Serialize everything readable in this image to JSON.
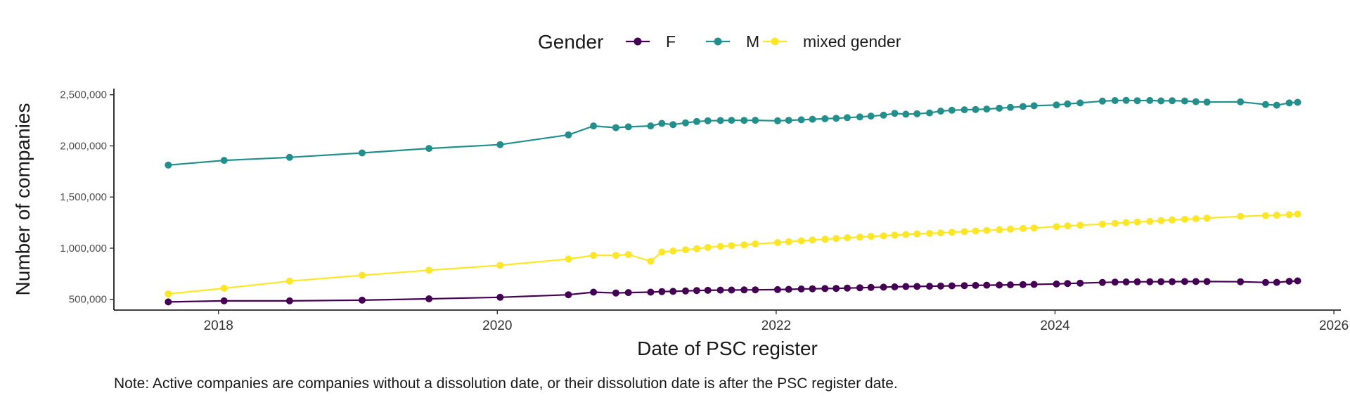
{
  "chart_data": {
    "type": "line",
    "xlabel": "Date of PSC register",
    "ylabel": "Number of companies",
    "xlim": [
      2017.25,
      2026.05
    ],
    "ylim": [
      395000,
      2560000
    ],
    "x_ticks": [
      2018,
      2020,
      2022,
      2024,
      2026
    ],
    "y_ticks": [
      500000,
      1000000,
      1500000,
      2000000,
      2500000
    ],
    "y_tick_labels": [
      "500,000",
      "1,000,000",
      "1,500,000",
      "2,000,000",
      "2,500,000"
    ],
    "grid": false,
    "legend": {
      "title": "Gender",
      "placement": "top",
      "entries": [
        "F",
        "M",
        "mixed gender"
      ]
    },
    "note": "Note: Active companies are companies without a dissolution date, or their dissolution date is after the PSC register date.",
    "x": [
      2017.64,
      2018.04,
      2018.51,
      2019.03,
      2019.51,
      2020.02,
      2020.51,
      2020.69,
      2020.85,
      2020.94,
      2021.1,
      2021.18,
      2021.26,
      2021.35,
      2021.43,
      2021.51,
      2021.6,
      2021.68,
      2021.77,
      2021.85,
      2022.01,
      2022.09,
      2022.18,
      2022.26,
      2022.35,
      2022.43,
      2022.51,
      2022.6,
      2022.68,
      2022.77,
      2022.85,
      2022.93,
      2023.01,
      2023.1,
      2023.18,
      2023.26,
      2023.35,
      2023.43,
      2023.51,
      2023.6,
      2023.68,
      2023.77,
      2023.85,
      2024.01,
      2024.09,
      2024.18,
      2024.34,
      2024.43,
      2024.51,
      2024.59,
      2024.68,
      2024.76,
      2024.84,
      2024.93,
      2025.01,
      2025.09,
      2025.33,
      2025.51,
      2025.59,
      2025.68,
      2025.74
    ],
    "series": [
      {
        "name": "F",
        "color": "#440154",
        "values": [
          475000,
          485000,
          485000,
          492000,
          505000,
          520000,
          545000,
          570000,
          562000,
          566000,
          570000,
          576000,
          578000,
          582000,
          586000,
          588000,
          590000,
          591000,
          592000,
          593000,
          595000,
          598000,
          601000,
          603000,
          605000,
          607000,
          610000,
          613000,
          616000,
          619000,
          622000,
          625000,
          626000,
          628000,
          630000,
          632000,
          634000,
          636000,
          638000,
          640000,
          642000,
          644000,
          646000,
          650000,
          655000,
          658000,
          665000,
          668000,
          670000,
          671000,
          672000,
          673000,
          673000,
          674000,
          674000,
          674000,
          672000,
          665000,
          666000,
          676000,
          680000
        ]
      },
      {
        "name": "M",
        "color": "#21908C",
        "values": [
          1812000,
          1858000,
          1888000,
          1931000,
          1975000,
          2012000,
          2108000,
          2195000,
          2178000,
          2186000,
          2195000,
          2220000,
          2208000,
          2225000,
          2238000,
          2245000,
          2248000,
          2250000,
          2249000,
          2250000,
          2245000,
          2250000,
          2255000,
          2260000,
          2265000,
          2270000,
          2276000,
          2283000,
          2291000,
          2300000,
          2318000,
          2310000,
          2314000,
          2322000,
          2340000,
          2348000,
          2353000,
          2356000,
          2360000,
          2368000,
          2376000,
          2385000,
          2392000,
          2400000,
          2410000,
          2420000,
          2438000,
          2443000,
          2445000,
          2442000,
          2444000,
          2440000,
          2442000,
          2439000,
          2432000,
          2428000,
          2430000,
          2405000,
          2398000,
          2420000,
          2426000
        ]
      },
      {
        "name": "mixed gender",
        "color": "#FDE725",
        "values": [
          553000,
          608000,
          678000,
          735000,
          785000,
          832000,
          894000,
          930000,
          930000,
          938000,
          872000,
          962000,
          972000,
          985000,
          995000,
          1008000,
          1018000,
          1026000,
          1033000,
          1042000,
          1055000,
          1064000,
          1072000,
          1080000,
          1088000,
          1095000,
          1102000,
          1108000,
          1115000,
          1120000,
          1128000,
          1134000,
          1140000,
          1145000,
          1150000,
          1156000,
          1162000,
          1168000,
          1174000,
          1180000,
          1186000,
          1192000,
          1198000,
          1210000,
          1218000,
          1225000,
          1235000,
          1243000,
          1250000,
          1256000,
          1262000,
          1270000,
          1276000,
          1282000,
          1288000,
          1294000,
          1312000,
          1318000,
          1322000,
          1328000,
          1333000
        ]
      }
    ]
  }
}
